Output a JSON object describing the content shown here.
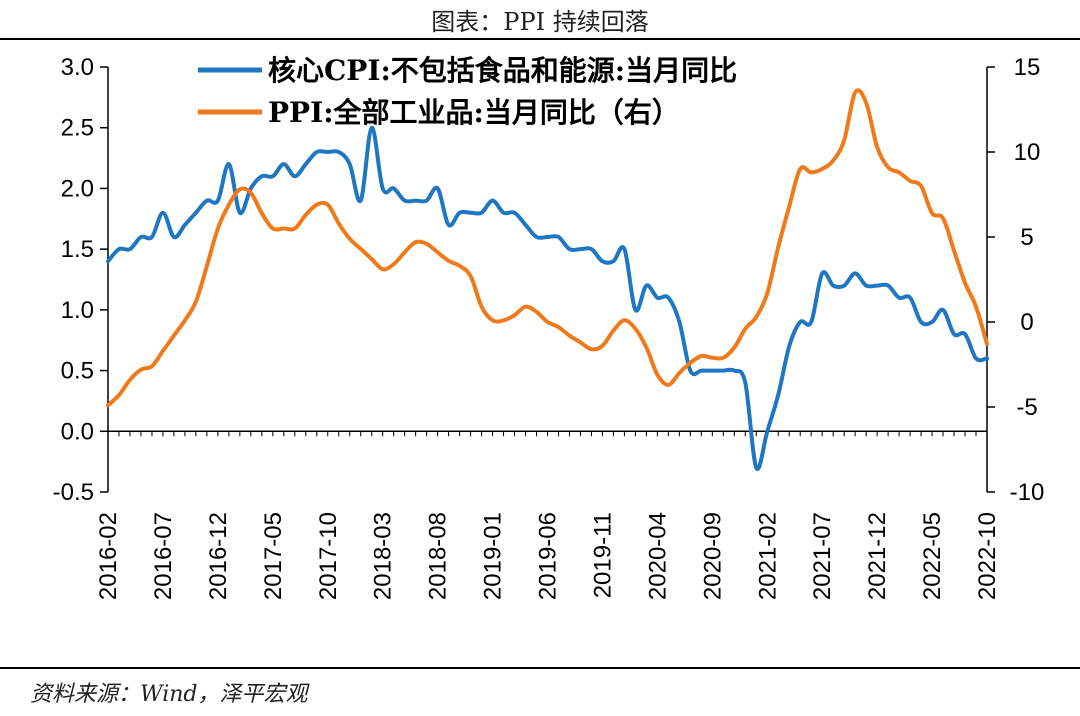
{
  "header": {
    "title": "图表：PPI 持续回落"
  },
  "footer": {
    "source": "资料来源：Wind，泽平宏观"
  },
  "chart_data": {
    "type": "line",
    "title": "图表：PPI 持续回落",
    "x": [
      "2016-02",
      "2016-03",
      "2016-04",
      "2016-05",
      "2016-06",
      "2016-07",
      "2016-08",
      "2016-09",
      "2016-10",
      "2016-11",
      "2016-12",
      "2017-01",
      "2017-02",
      "2017-03",
      "2017-04",
      "2017-05",
      "2017-06",
      "2017-07",
      "2017-08",
      "2017-09",
      "2017-10",
      "2017-11",
      "2017-12",
      "2018-01",
      "2018-02",
      "2018-03",
      "2018-04",
      "2018-05",
      "2018-06",
      "2018-07",
      "2018-08",
      "2018-09",
      "2018-10",
      "2018-11",
      "2018-12",
      "2019-01",
      "2019-02",
      "2019-03",
      "2019-04",
      "2019-05",
      "2019-06",
      "2019-07",
      "2019-08",
      "2019-09",
      "2019-10",
      "2019-11",
      "2019-12",
      "2020-01",
      "2020-02",
      "2020-03",
      "2020-04",
      "2020-05",
      "2020-06",
      "2020-07",
      "2020-08",
      "2020-09",
      "2020-10",
      "2020-11",
      "2020-12",
      "2021-01",
      "2021-02",
      "2021-03",
      "2021-04",
      "2021-05",
      "2021-06",
      "2021-07",
      "2021-08",
      "2021-09",
      "2021-10",
      "2021-11",
      "2021-12",
      "2022-01",
      "2022-02",
      "2022-03",
      "2022-04",
      "2022-05",
      "2022-06",
      "2022-07",
      "2022-08",
      "2022-09",
      "2022-10"
    ],
    "x_tick_labels": [
      "2016-02",
      "2016-07",
      "2016-12",
      "2017-05",
      "2017-10",
      "2018-03",
      "2018-08",
      "2019-01",
      "2019-06",
      "2019-11",
      "2020-04",
      "2020-09",
      "2021-02",
      "2021-07",
      "2021-12",
      "2022-05",
      "2022-10"
    ],
    "y_left": {
      "ylim": [
        -0.5,
        3.0
      ],
      "ticks": [
        "3.0",
        "2.5",
        "2.0",
        "1.5",
        "1.0",
        "0.5",
        "0.0",
        "-0.5"
      ]
    },
    "y_right": {
      "ylim": [
        -10,
        15
      ],
      "ticks": [
        "15",
        "10",
        "5",
        "0",
        "-5",
        "-10"
      ]
    },
    "grid": false,
    "legend_placement": "top",
    "series": [
      {
        "name": "核心CPI:不包括食品和能源:当月同比",
        "axis": "left",
        "color": "#1f77c4",
        "values": [
          1.4,
          1.5,
          1.5,
          1.6,
          1.6,
          1.8,
          1.6,
          1.7,
          1.8,
          1.9,
          1.9,
          2.2,
          1.8,
          2.0,
          2.1,
          2.1,
          2.2,
          2.1,
          2.2,
          2.3,
          2.3,
          2.3,
          2.2,
          1.9,
          2.5,
          2.0,
          2.0,
          1.9,
          1.9,
          1.9,
          2.0,
          1.7,
          1.8,
          1.8,
          1.8,
          1.9,
          1.8,
          1.8,
          1.7,
          1.6,
          1.6,
          1.6,
          1.5,
          1.5,
          1.5,
          1.4,
          1.4,
          1.5,
          1.0,
          1.2,
          1.1,
          1.1,
          0.9,
          0.5,
          0.5,
          0.5,
          0.5,
          0.5,
          0.4,
          -0.3,
          0.0,
          0.3,
          0.7,
          0.9,
          0.9,
          1.3,
          1.2,
          1.2,
          1.3,
          1.2,
          1.2,
          1.2,
          1.1,
          1.1,
          0.9,
          0.9,
          1.0,
          0.8,
          0.8,
          0.6,
          0.6
        ]
      },
      {
        "name": "PPI:全部工业品:当月同比（右）",
        "axis": "right",
        "color": "#f07a1a",
        "values": [
          -4.9,
          -4.3,
          -3.4,
          -2.8,
          -2.6,
          -1.7,
          -0.8,
          0.1,
          1.2,
          3.3,
          5.5,
          6.9,
          7.8,
          7.6,
          6.4,
          5.5,
          5.5,
          5.5,
          6.3,
          6.9,
          6.9,
          5.8,
          4.9,
          4.3,
          3.7,
          3.1,
          3.4,
          4.1,
          4.7,
          4.6,
          4.1,
          3.6,
          3.3,
          2.7,
          0.9,
          0.1,
          0.1,
          0.4,
          0.9,
          0.6,
          0.0,
          -0.3,
          -0.8,
          -1.2,
          -1.6,
          -1.4,
          -0.5,
          0.1,
          -0.4,
          -1.5,
          -3.1,
          -3.7,
          -3.0,
          -2.4,
          -2.0,
          -2.1,
          -2.1,
          -1.5,
          -0.4,
          0.3,
          1.7,
          4.4,
          6.8,
          9.0,
          8.8,
          9.0,
          9.5,
          10.7,
          13.5,
          12.9,
          10.3,
          9.1,
          8.8,
          8.3,
          8.0,
          6.4,
          6.1,
          4.2,
          2.3,
          0.9,
          -1.3
        ]
      }
    ]
  }
}
